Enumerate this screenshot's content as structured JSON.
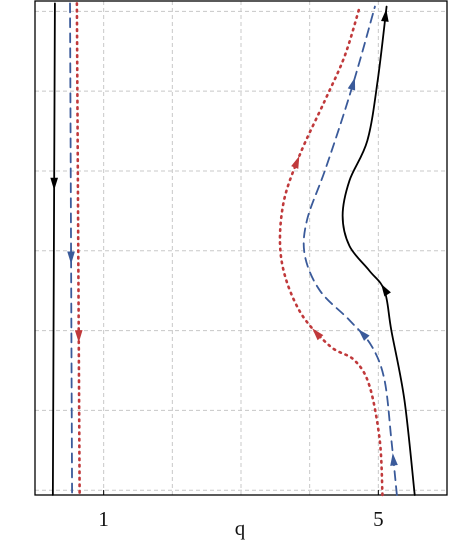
{
  "chart_data": {
    "type": "line",
    "x_label": "q",
    "xlim": [
      0,
      6
    ],
    "ylim": [
      -0.06,
      6.13
    ],
    "xticks": [
      1,
      5
    ],
    "xgrid": [
      0,
      1,
      2,
      3,
      4,
      5,
      6
    ],
    "ygrid": [
      0,
      1,
      2,
      3,
      4,
      5,
      6
    ],
    "series": [
      {
        "color": "#000000",
        "style": "solid",
        "x": [
          0.29,
          0.26
        ],
        "y": [
          6.1,
          -0.06
        ]
      },
      {
        "color": "#3a5a9a",
        "style": "dashed",
        "x": [
          0.51,
          0.54
        ],
        "y": [
          6.1,
          -0.06
        ]
      },
      {
        "color": "#c0393b",
        "style": "dotted",
        "x": [
          0.61,
          0.65
        ],
        "y": [
          6.1,
          -0.06
        ]
      },
      {
        "color": "#000000",
        "style": "solid",
        "x": [
          5.53,
          5.38,
          5.19,
          5.09,
          4.87,
          4.58,
          4.48,
          4.58,
          4.84,
          4.99,
          5.12
        ],
        "y": [
          -0.06,
          1.13,
          2.0,
          2.5,
          2.75,
          3.06,
          3.44,
          3.88,
          4.38,
          5.13,
          6.06
        ]
      },
      {
        "color": "#3a5a9a",
        "style": "dashed",
        "x": [
          5.27,
          5.19,
          5.09,
          4.9,
          4.58,
          4.15,
          3.93,
          3.96,
          4.22,
          4.51,
          4.73,
          4.95
        ],
        "y": [
          -0.06,
          0.63,
          1.38,
          1.81,
          2.13,
          2.5,
          2.94,
          3.38,
          4.0,
          4.75,
          5.38,
          6.06
        ]
      },
      {
        "color": "#c0393b",
        "style": "dotted",
        "x": [
          5.06,
          5.02,
          4.87,
          4.65,
          4.29,
          3.85,
          3.59,
          3.61,
          3.85,
          4.22,
          4.51,
          4.73
        ],
        "y": [
          -0.06,
          0.63,
          1.31,
          1.63,
          1.81,
          2.25,
          2.88,
          3.56,
          4.19,
          4.88,
          5.44,
          6.06
        ]
      }
    ]
  }
}
